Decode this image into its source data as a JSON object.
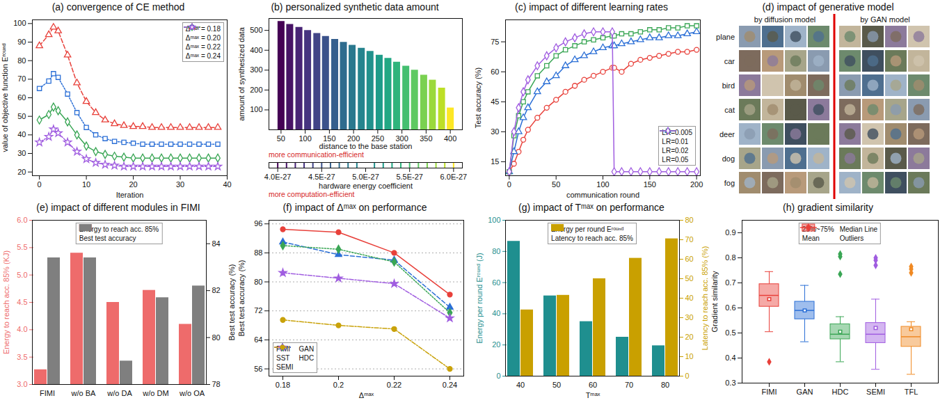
{
  "chart_data": [
    {
      "type": "line",
      "title": "(a) convergence of CE method",
      "xlabel": "Iteration",
      "ylabel": "value of objective function Eʳᵒᵘⁿᵈ",
      "x": [
        0,
        2,
        3,
        4,
        6,
        8,
        10,
        12,
        14,
        16,
        18,
        20,
        22,
        24,
        26,
        28,
        30,
        32,
        34,
        36,
        38
      ],
      "xlim": [
        -1.5,
        40
      ],
      "xticks": [
        0,
        10,
        20,
        30,
        40
      ],
      "ylim": [
        18,
        102
      ],
      "yticks": [
        20,
        30,
        40,
        50,
        60,
        70,
        80,
        90,
        100
      ],
      "legend": "upper right",
      "series": [
        {
          "name": "Δᵐᵃˣ = 0.18",
          "color": "#e8403a",
          "marker": "triangle",
          "line_style": "dashed",
          "values": [
            88,
            94,
            98,
            96,
            83,
            68,
            58,
            52,
            48,
            46,
            45,
            44.5,
            44.5,
            44,
            44,
            44,
            44,
            44,
            44,
            44,
            44
          ]
        },
        {
          "name": "Δᵐᵃˣ = 0.20",
          "color": "#2b6fd6",
          "marker": "square",
          "line_style": "dotted",
          "values": [
            65,
            69,
            73,
            71,
            62,
            52,
            44,
            40,
            38,
            36.5,
            36,
            35.5,
            35,
            35,
            35,
            35,
            35,
            35,
            35,
            35,
            35
          ]
        },
        {
          "name": "Δᵐᵃˣ = 0.22",
          "color": "#3aa655",
          "marker": "diamond",
          "line_style": "solid",
          "values": [
            48,
            51,
            55,
            53,
            47,
            40,
            34,
            31,
            29.5,
            28.5,
            28,
            27.5,
            27.5,
            27.5,
            27.5,
            27.5,
            27.5,
            27.5,
            27.5,
            27.5,
            27.5
          ]
        },
        {
          "name": "Δᵐᵃˣ = 0.24",
          "color": "#a05de0",
          "marker": "star",
          "line_style": "dashdot",
          "values": [
            36,
            39,
            43,
            41,
            36,
            31,
            27,
            25,
            24,
            23.5,
            23,
            23,
            23,
            23,
            23,
            23,
            23,
            23,
            23,
            23,
            23
          ]
        }
      ]
    },
    {
      "type": "bar3d",
      "title": "(b) personalized synthetic data amount",
      "xlabel": "distance to the base station",
      "ylabel": "amount of synthesized data",
      "x": [
        50,
        68,
        87,
        105,
        124,
        142,
        161,
        179,
        197,
        216,
        234,
        253,
        271,
        289,
        308,
        326,
        345,
        363,
        382,
        400
      ],
      "xlim": [
        25,
        425
      ],
      "xticks": [
        50,
        100,
        150,
        200,
        250,
        300,
        350,
        400
      ],
      "values": [
        545,
        530,
        515,
        500,
        485,
        470,
        455,
        440,
        425,
        410,
        395,
        375,
        360,
        340,
        320,
        300,
        275,
        250,
        210,
        110
      ],
      "ylim": [
        0,
        560
      ],
      "yticks": [
        100,
        200,
        300,
        400,
        500
      ],
      "coefficient": [
        4e-27,
        4.1e-27,
        4.2e-27,
        4.3e-27,
        4.4e-27,
        4.5e-27,
        4.6e-27,
        4.7e-27,
        4.8e-27,
        4.9e-27,
        5.1e-27,
        5.2e-27,
        5.3e-27,
        5.4e-27,
        5.5e-27,
        5.6e-27,
        5.7e-27,
        5.8e-27,
        5.9e-27,
        6e-27
      ],
      "coefficient_label": "hardware energy coefficient",
      "coefficient_lim": [
        3.9e-27,
        6.1e-27
      ],
      "coefficient_ticks": [
        {
          "value": 4e-27,
          "label": "4.0E-27"
        },
        {
          "value": 4.5e-27,
          "label": "4.5E-27"
        },
        {
          "value": 5e-27,
          "label": "5.0E-27"
        },
        {
          "value": 5.5e-27,
          "label": "5.5E-27"
        },
        {
          "value": 6e-27,
          "label": "6.0E-27"
        }
      ],
      "colors": [
        "#440154",
        "#471365",
        "#482475",
        "#463480",
        "#414487",
        "#3b528b",
        "#355f8d",
        "#2f6c8e",
        "#2a788e",
        "#25848e",
        "#21918c",
        "#1e9c89",
        "#22a884",
        "#2fb47c",
        "#44bf70",
        "#5ec962",
        "#7ad151",
        "#9bd93c",
        "#bddf26",
        "#fde725"
      ],
      "annotations": [
        "more communication-efficient",
        "more computation-efficient"
      ]
    },
    {
      "type": "line",
      "title": "(c) impact of different learning rates",
      "xlabel": "communication round",
      "ylabel": "Test accuracy (%)",
      "x": [
        0,
        5,
        10,
        15,
        20,
        30,
        40,
        50,
        60,
        70,
        80,
        90,
        100,
        110,
        112,
        120,
        130,
        140,
        150,
        160,
        170,
        180,
        190,
        200
      ],
      "xlim": [
        -4,
        204
      ],
      "xticks": [
        0,
        50,
        100,
        150,
        200
      ],
      "ylim": [
        8,
        86
      ],
      "yticks": [
        15,
        30,
        45,
        60,
        75
      ],
      "legend": "lower right",
      "series": [
        {
          "name": "LR=0.005",
          "color": "#e8403a",
          "marker": "circle",
          "values": [
            10,
            14,
            20,
            26,
            31,
            37,
            42,
            46,
            50,
            53,
            56,
            58,
            60,
            62,
            62,
            60,
            64,
            66,
            67,
            68,
            69,
            70,
            70,
            71
          ]
        },
        {
          "name": "LR=0.01",
          "color": "#2b6fd6",
          "marker": "triangle",
          "values": [
            10,
            20,
            30,
            37,
            42,
            50,
            55,
            58,
            63,
            66,
            68,
            70,
            72,
            73,
            73,
            74,
            75,
            76,
            77,
            77,
            78,
            78,
            79,
            80
          ]
        },
        {
          "name": "LR=0.02",
          "color": "#3aa655",
          "marker": "square",
          "values": [
            10,
            28,
            38,
            45,
            50,
            58,
            63,
            68,
            71,
            73,
            75,
            76,
            77,
            78,
            78,
            79,
            79,
            80,
            81,
            81,
            82,
            82,
            83,
            83
          ]
        },
        {
          "name": "LR=0.05",
          "color": "#a05de0",
          "marker": "diamond",
          "values": [
            10,
            30,
            42,
            50,
            56,
            63,
            68,
            72,
            75,
            77,
            79,
            80,
            80,
            80,
            10,
            10,
            10,
            10,
            10,
            10,
            10,
            10,
            10,
            10
          ]
        }
      ]
    },
    {
      "type": "image_grid",
      "title": "(d) impact of generative model",
      "columns": [
        "by diffusion model",
        "by GAN model"
      ],
      "rows": [
        "plane",
        "car",
        "bird",
        "cat",
        "deer",
        "dog",
        "fog"
      ]
    },
    {
      "type": "bar",
      "title": "(e) impact of different modules in FIMI",
      "categories": [
        "FIMI",
        "w/o BA",
        "w/o DA",
        "w/o DM",
        "w/o OA"
      ],
      "ylabel": "Energy to reach acc. 85% (KJ)",
      "ylim": [
        3,
        6
      ],
      "yticks": [
        {
          "value": 3,
          "label": "3.0"
        },
        {
          "value": 3.5,
          "label": "3.5"
        },
        {
          "value": 4,
          "label": "4.0"
        },
        {
          "value": 4.5,
          "label": "4.5"
        },
        {
          "value": 5,
          "label": "5.0"
        },
        {
          "value": 5.5,
          "label": "5.5"
        },
        {
          "value": 6,
          "label": "6.0"
        }
      ],
      "y2label": "Best test accuracy (%)",
      "y2lim": [
        78,
        85
      ],
      "y2ticks": [
        78,
        80,
        82,
        84
      ],
      "legend": "upper center",
      "series": [
        {
          "name": "Energy to reach acc. 85%",
          "color": "#ee6b6b",
          "values": [
            3.27,
            5.4,
            4.5,
            4.72,
            4.1
          ]
        },
        {
          "name": "Best test accuracy",
          "color": "#7f7f7f",
          "axis": "y2",
          "values": [
            83.4,
            83.4,
            79.0,
            81.7,
            82.2
          ]
        }
      ]
    },
    {
      "type": "line",
      "title": "(f) impact of Δᵐᵃˣ on performance",
      "xlabel": "Δᵐᵃˣ",
      "ylabel": "Best test accuracy (%)",
      "x": [
        0.18,
        0.2,
        0.22,
        0.24
      ],
      "xlim": [
        0.175,
        0.245
      ],
      "xticks": [
        0.18,
        0.2,
        0.22,
        0.24
      ],
      "ylim": [
        54,
        97
      ],
      "yticks": [
        56,
        64,
        72,
        80,
        88,
        96
      ],
      "grid": true,
      "legend": "lower left",
      "series": [
        {
          "name": "FIMI",
          "color": "#e8403a",
          "marker": "circle",
          "line_style": "solid",
          "values": [
            94.5,
            93.7,
            88,
            76.5
          ]
        },
        {
          "name": "GAN",
          "color": "#2b6fd6",
          "marker": "triangle",
          "line_style": "dashed",
          "values": [
            91,
            87.5,
            86,
            73
          ]
        },
        {
          "name": "SST",
          "color": "#3aa655",
          "marker": "diamond",
          "line_style": "dotted",
          "values": [
            90,
            89,
            85.5,
            71.5
          ]
        },
        {
          "name": "HDC",
          "color": "#a05de0",
          "marker": "star",
          "line_style": "dashdot",
          "values": [
            82.5,
            81,
            79.5,
            70
          ]
        },
        {
          "name": "SEMI",
          "color": "#c9a20a",
          "marker": "circle",
          "line_style": "dashdot",
          "values": [
            69.5,
            68,
            67,
            56
          ]
        }
      ]
    },
    {
      "type": "bar",
      "title": "(g) impact of Tᵐᵃˣ on performance",
      "categories": [
        40,
        50,
        60,
        70,
        80
      ],
      "xlabel": "Tᵐᵃˣ",
      "ylabel": "Energy per round Eʳᵒᵘⁿᵈ (J)",
      "ylim": [
        0,
        100
      ],
      "yticks": [
        0,
        20,
        40,
        60,
        80,
        100
      ],
      "y2label": "Latency to reach acc. 85% (%)",
      "y2lim": [
        0,
        80
      ],
      "y2ticks": [
        0,
        10,
        20,
        30,
        40,
        50,
        60,
        70,
        80
      ],
      "legend": "upper center",
      "series": [
        {
          "name": "Energy per round Eʳᵒᵘⁿᵈ",
          "color": "#1f8f8f",
          "values": [
            86.5,
            51.5,
            35,
            25,
            19.5
          ]
        },
        {
          "name": "Latency to reach acc. 85%",
          "color": "#c9a000",
          "axis": "y2",
          "values": [
            34,
            41.5,
            50,
            60.5,
            70.5
          ]
        }
      ]
    },
    {
      "type": "box",
      "title": "(h) gradient similarity",
      "categories": [
        "FIMI",
        "GAN",
        "HDC",
        "SEMI",
        "TFL"
      ],
      "ylabel": "Gradient similarity",
      "ylim": [
        0.3,
        0.95
      ],
      "yticks": [
        0.3,
        0.4,
        0.5,
        0.6,
        0.7,
        0.8,
        0.9
      ],
      "colors": [
        "#e8403a",
        "#2b6fd6",
        "#3aa655",
        "#a05de0",
        "#f08a24"
      ],
      "whisker_low": [
        0.505,
        0.465,
        0.385,
        0.355,
        0.335
      ],
      "q1": [
        0.605,
        0.555,
        0.475,
        0.46,
        0.445
      ],
      "median": [
        0.65,
        0.59,
        0.495,
        0.495,
        0.485
      ],
      "q3": [
        0.695,
        0.625,
        0.535,
        0.54,
        0.525
      ],
      "whisker_high": [
        0.745,
        0.69,
        0.565,
        0.635,
        0.545
      ],
      "mean": [
        0.635,
        0.59,
        0.505,
        0.52,
        0.515
      ],
      "outliers": [
        [
          0.385
        ],
        [],
        [
          0.735,
          0.805,
          0.815
        ],
        [
          0.77,
          0.79,
          0.8
        ],
        [
          0.74,
          0.755,
          0.765
        ]
      ],
      "legend_items": [
        "25%~75%",
        "Median Line",
        "Mean",
        "Outliers"
      ],
      "legend": "upper center"
    }
  ]
}
